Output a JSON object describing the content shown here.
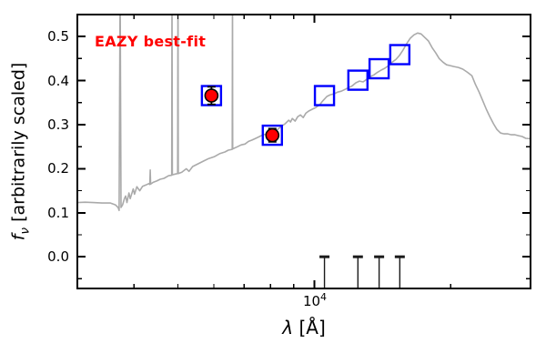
{
  "chart_data": {
    "type": "line",
    "annotation": {
      "text": "EAZY best-fit",
      "color": "#ff0000"
    },
    "xlabel": {
      "symbol": "λ",
      "unit": "[Å]"
    },
    "ylabel": {
      "symbol": "f",
      "subscript": "ν",
      "rest": "[arbitrarily scaled]"
    },
    "x_axis": {
      "scale": "log",
      "lim": [
        3000,
        30000
      ],
      "major_ticks": [
        10000
      ],
      "major_tick_label": {
        "base": "10",
        "exponent": "4"
      },
      "minor_ticks": [
        4000,
        5000,
        6000,
        7000,
        8000,
        9000,
        20000
      ]
    },
    "y_axis": {
      "lim": [
        -0.072,
        0.55
      ],
      "major_ticks": [
        0.0,
        0.1,
        0.2,
        0.3,
        0.4,
        0.5
      ],
      "tick_labels": [
        "0.0",
        "0.1",
        "0.2",
        "0.3",
        "0.4",
        "0.5"
      ],
      "minor_ticks": [
        -0.05,
        0.05,
        0.15,
        0.25,
        0.35,
        0.45
      ]
    },
    "grid": false,
    "colors": {
      "spectrum": "#aaaaaa",
      "model_marker": "#0000ff",
      "observed_fill": "#ff0000",
      "observed_edge": "#000000",
      "axis": "#000000",
      "filter_marker": "#1a1a1a"
    },
    "series": [
      {
        "name": "best-fit template spectrum",
        "type": "line",
        "color": "#aaaaaa",
        "points": [
          [
            3006,
            0.123
          ],
          [
            3120,
            0.124
          ],
          [
            3250,
            0.123
          ],
          [
            3400,
            0.122
          ],
          [
            3550,
            0.122
          ],
          [
            3640,
            0.118
          ],
          [
            3690,
            0.112
          ],
          [
            3710,
            0.105
          ],
          [
            3728,
            0.62
          ],
          [
            3745,
            0.112
          ],
          [
            3775,
            0.118
          ],
          [
            3810,
            0.132
          ],
          [
            3835,
            0.138
          ],
          [
            3860,
            0.123
          ],
          [
            3900,
            0.145
          ],
          [
            3925,
            0.132
          ],
          [
            3985,
            0.154
          ],
          [
            4010,
            0.142
          ],
          [
            4060,
            0.159
          ],
          [
            4120,
            0.15
          ],
          [
            4180,
            0.16
          ],
          [
            4250,
            0.163
          ],
          [
            4310,
            0.166
          ],
          [
            4335,
            0.164
          ],
          [
            4344,
            0.197
          ],
          [
            4353,
            0.165
          ],
          [
            4410,
            0.169
          ],
          [
            4490,
            0.172
          ],
          [
            4570,
            0.176
          ],
          [
            4660,
            0.178
          ],
          [
            4770,
            0.184
          ],
          [
            4845,
            0.185
          ],
          [
            4853,
            0.62
          ],
          [
            4861,
            0.186
          ],
          [
            4940,
            0.188
          ],
          [
            4994,
            0.189
          ],
          [
            5002,
            0.62
          ],
          [
            5010,
            0.189
          ],
          [
            5100,
            0.192
          ],
          [
            5220,
            0.2
          ],
          [
            5290,
            0.194
          ],
          [
            5390,
            0.205
          ],
          [
            5540,
            0.211
          ],
          [
            5690,
            0.217
          ],
          [
            5850,
            0.223
          ],
          [
            6010,
            0.227
          ],
          [
            6180,
            0.234
          ],
          [
            6350,
            0.238
          ],
          [
            6460,
            0.242
          ],
          [
            6590,
            0.244
          ],
          [
            6598,
            0.62
          ],
          [
            6606,
            0.245
          ],
          [
            6640,
            0.246
          ],
          [
            6770,
            0.25
          ],
          [
            6900,
            0.254
          ],
          [
            7030,
            0.256
          ],
          [
            7160,
            0.262
          ],
          [
            7290,
            0.265
          ],
          [
            7430,
            0.269
          ],
          [
            7570,
            0.273
          ],
          [
            7710,
            0.277
          ],
          [
            7850,
            0.279
          ],
          [
            8000,
            0.281
          ],
          [
            8150,
            0.285
          ],
          [
            8300,
            0.289
          ],
          [
            8460,
            0.296
          ],
          [
            8620,
            0.302
          ],
          [
            8780,
            0.31
          ],
          [
            8860,
            0.306
          ],
          [
            8940,
            0.314
          ],
          [
            9070,
            0.308
          ],
          [
            9190,
            0.318
          ],
          [
            9320,
            0.322
          ],
          [
            9450,
            0.316
          ],
          [
            9580,
            0.326
          ],
          [
            9720,
            0.331
          ],
          [
            9900,
            0.335
          ],
          [
            10080,
            0.339
          ],
          [
            10270,
            0.345
          ],
          [
            10460,
            0.355
          ],
          [
            10660,
            0.364
          ],
          [
            10850,
            0.368
          ],
          [
            11060,
            0.37
          ],
          [
            11260,
            0.374
          ],
          [
            11470,
            0.376
          ],
          [
            11680,
            0.38
          ],
          [
            11900,
            0.384
          ],
          [
            12120,
            0.388
          ],
          [
            12350,
            0.395
          ],
          [
            12580,
            0.399
          ],
          [
            12810,
            0.397
          ],
          [
            13050,
            0.403
          ],
          [
            13290,
            0.409
          ],
          [
            13540,
            0.413
          ],
          [
            13790,
            0.419
          ],
          [
            14050,
            0.424
          ],
          [
            14310,
            0.428
          ],
          [
            14580,
            0.434
          ],
          [
            14850,
            0.442
          ],
          [
            15130,
            0.448
          ],
          [
            15410,
            0.457
          ],
          [
            15690,
            0.469
          ],
          [
            15990,
            0.484
          ],
          [
            16280,
            0.496
          ],
          [
            16590,
            0.504
          ],
          [
            16900,
            0.508
          ],
          [
            17210,
            0.506
          ],
          [
            17530,
            0.498
          ],
          [
            17860,
            0.49
          ],
          [
            18190,
            0.475
          ],
          [
            18530,
            0.463
          ],
          [
            18870,
            0.45
          ],
          [
            19230,
            0.442
          ],
          [
            19580,
            0.436
          ],
          [
            19950,
            0.434
          ],
          [
            20320,
            0.432
          ],
          [
            20790,
            0.43
          ],
          [
            21270,
            0.426
          ],
          [
            21770,
            0.419
          ],
          [
            22270,
            0.411
          ],
          [
            22680,
            0.391
          ],
          [
            23100,
            0.374
          ],
          [
            23520,
            0.355
          ],
          [
            23960,
            0.335
          ],
          [
            24400,
            0.318
          ],
          [
            24850,
            0.302
          ],
          [
            25300,
            0.289
          ],
          [
            25770,
            0.281
          ],
          [
            26240,
            0.279
          ],
          [
            26730,
            0.279
          ],
          [
            27220,
            0.277
          ],
          [
            27720,
            0.277
          ],
          [
            28230,
            0.275
          ],
          [
            28750,
            0.273
          ],
          [
            29280,
            0.269
          ],
          [
            30000,
            0.268
          ]
        ]
      },
      {
        "name": "model photometry",
        "type": "scatter",
        "marker": "open-square",
        "color": "#0000ff",
        "points": [
          [
            5930,
            0.366
          ],
          [
            8080,
            0.276
          ],
          [
            10530,
            0.366
          ],
          [
            12480,
            0.401
          ],
          [
            13900,
            0.427
          ],
          [
            15440,
            0.459
          ]
        ]
      },
      {
        "name": "observed photometry",
        "type": "scatter",
        "marker": "filled-circle",
        "fill": "#ff0000",
        "edge": "#000000",
        "points": [
          {
            "lam": 5930,
            "f": 0.366,
            "err": 0.02
          },
          {
            "lam": 8080,
            "f": 0.276,
            "err": 0.015
          }
        ]
      }
    ],
    "filter_markers": {
      "shape": "stem-with-top-cap",
      "top_f": 0.0,
      "lams": [
        10530,
        12480,
        13900,
        15440
      ],
      "color": "#1a1a1a"
    }
  }
}
